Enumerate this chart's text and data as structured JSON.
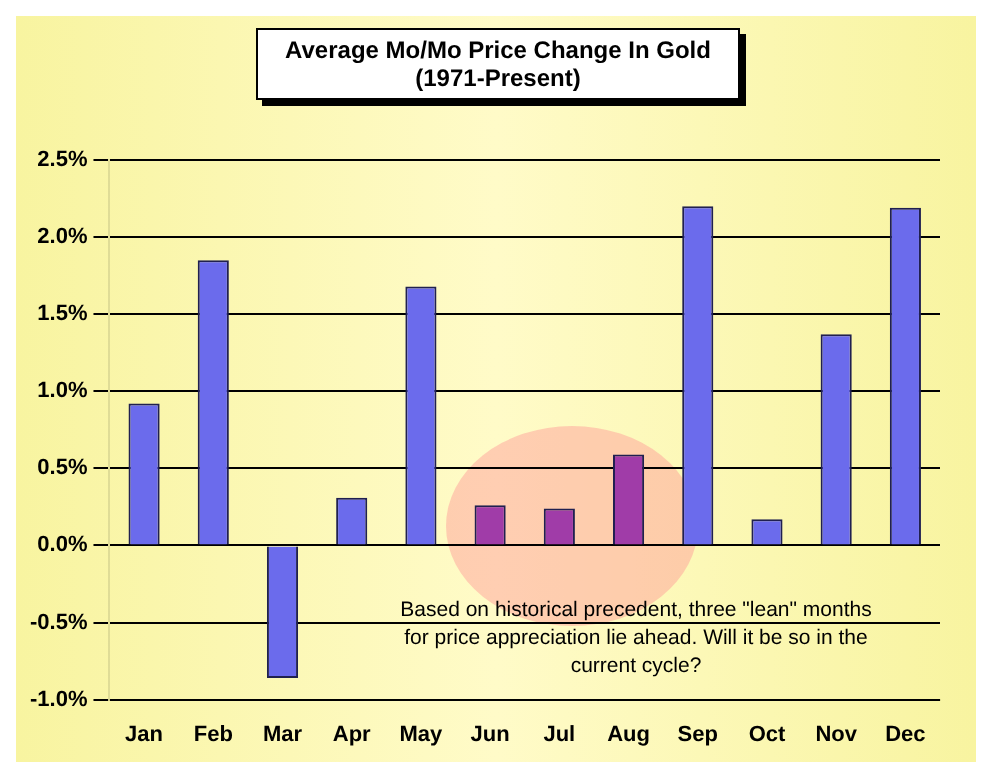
{
  "chart_data": {
    "type": "bar",
    "title": "Average Mo/Mo Price Change In Gold",
    "subtitle": "(1971-Present)",
    "categories": [
      "Jan",
      "Feb",
      "Mar",
      "Apr",
      "May",
      "Jun",
      "Jul",
      "Aug",
      "Sep",
      "Oct",
      "Nov",
      "Dec"
    ],
    "values": [
      0.92,
      1.85,
      -0.86,
      0.31,
      1.68,
      0.26,
      0.24,
      0.59,
      2.2,
      0.17,
      1.37,
      2.19
    ],
    "colors": [
      "#6b6bec",
      "#6b6bec",
      "#6b6bec",
      "#6b6bec",
      "#6b6bec",
      "#a03ca8",
      "#a03ca8",
      "#a03ca8",
      "#6b6bec",
      "#6b6bec",
      "#6b6bec",
      "#6b6bec"
    ],
    "ylim": [
      -1,
      2.5
    ],
    "yticks": [
      {
        "value": -1,
        "label": "-1.0%"
      },
      {
        "value": -0.5,
        "label": "-0.5%"
      },
      {
        "value": 0,
        "label": "0.0%"
      },
      {
        "value": 0.5,
        "label": "0.5%"
      },
      {
        "value": 1,
        "label": "1.0%"
      },
      {
        "value": 1.5,
        "label": "1.5%"
      },
      {
        "value": 2,
        "label": "2.0%"
      },
      {
        "value": 2.5,
        "label": "2.5%"
      }
    ],
    "annotations": [
      "Based on historical precedent, three \"lean\" months for price appreciation lie ahead.  Will it be so in the current cycle?"
    ],
    "grid": "y",
    "legend": false
  }
}
